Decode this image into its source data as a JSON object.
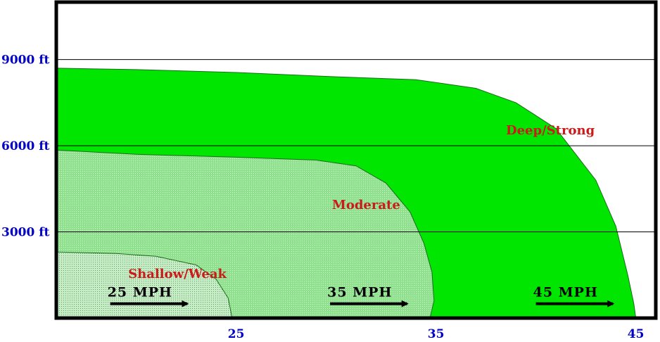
{
  "chart_data": {
    "type": "area",
    "title": "",
    "xlabel": "",
    "ylabel": "",
    "xlim": [
      16,
      46
    ],
    "ylim": [
      0,
      11000
    ],
    "x_ticks": [
      "25",
      "35",
      "45"
    ],
    "x_tick_values": [
      25,
      35,
      45
    ],
    "y_ticks": [
      "3000 ft",
      "6000 ft",
      "9000 ft"
    ],
    "y_tick_values": [
      3000,
      6000,
      9000
    ],
    "grid": "horizontal",
    "regions": [
      {
        "label": "Deep/Strong",
        "color": "#00e600",
        "label_at": [
          38.5,
          6400
        ],
        "boundary": [
          [
            16,
            8700
          ],
          [
            20,
            8650
          ],
          [
            25,
            8550
          ],
          [
            30,
            8400
          ],
          [
            34,
            8300
          ],
          [
            37,
            8000
          ],
          [
            39,
            7500
          ],
          [
            41,
            6600
          ],
          [
            43,
            4800
          ],
          [
            44,
            3200
          ],
          [
            44.6,
            1500
          ],
          [
            44.9,
            500
          ],
          [
            45,
            0
          ]
        ]
      },
      {
        "label": "Moderate",
        "color": "#a8f0a8",
        "label_at": [
          29.8,
          3800
        ],
        "boundary": [
          [
            16,
            5850
          ],
          [
            20,
            5700
          ],
          [
            25,
            5600
          ],
          [
            29,
            5500
          ],
          [
            31,
            5300
          ],
          [
            32.5,
            4700
          ],
          [
            33.7,
            3700
          ],
          [
            34.4,
            2600
          ],
          [
            34.8,
            1600
          ],
          [
            34.9,
            600
          ],
          [
            34.7,
            0
          ]
        ]
      },
      {
        "label": "Shallow/Weak",
        "color": "#e8f5e8",
        "label_at": [
          19.6,
          1400
        ],
        "boundary": [
          [
            16,
            2300
          ],
          [
            19,
            2250
          ],
          [
            21,
            2150
          ],
          [
            23,
            1850
          ],
          [
            24,
            1350
          ],
          [
            24.6,
            700
          ],
          [
            24.8,
            0
          ]
        ]
      }
    ],
    "speed_arrows": [
      {
        "label": "25 MPH",
        "x_from": 18.7,
        "x_to": 22.7,
        "y": 500
      },
      {
        "label": "35 MPH",
        "x_from": 29.7,
        "x_to": 33.7,
        "y": 500
      },
      {
        "label": "45 MPH",
        "x_from": 40.0,
        "x_to": 44.0,
        "y": 500
      }
    ]
  }
}
